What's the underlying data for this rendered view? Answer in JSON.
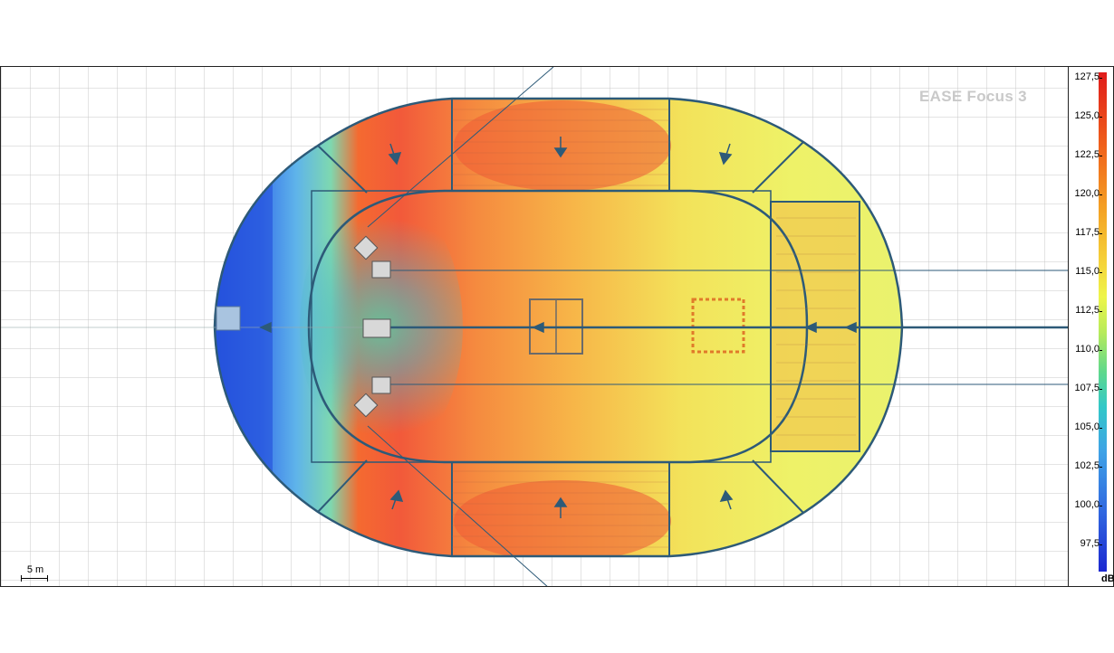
{
  "watermark": "EASE Focus 3",
  "scale": {
    "label": "5 m"
  },
  "legend": {
    "unit": "dB",
    "ticks": [
      "127,5",
      "125,0",
      "122,5",
      "120,0",
      "117,5",
      "115,0",
      "112,5",
      "110,0",
      "107,5",
      "105,0",
      "102,5",
      "100,0",
      "97,5"
    ],
    "colors": {
      "high": "#e01b1b",
      "mid": "#eef54a",
      "low": "#1c28d0"
    }
  },
  "icons": {
    "speaker": "speaker-icon",
    "axis": "axis-origin-icon",
    "arrow": "direction-arrow-icon"
  }
}
